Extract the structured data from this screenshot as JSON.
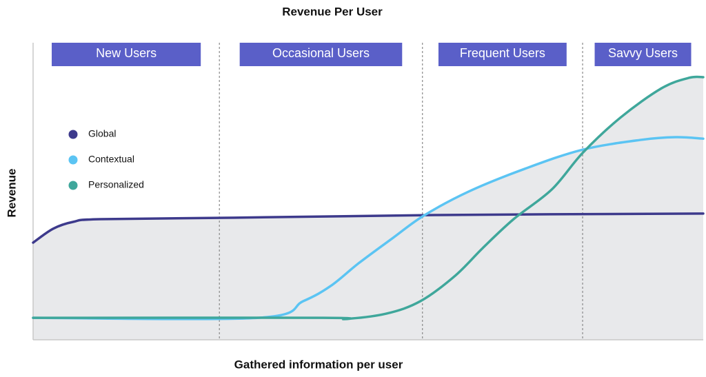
{
  "chart_data": {
    "type": "line",
    "title": "Revenue Per User",
    "xlabel": "Gathered information per user",
    "ylabel": "Revenue",
    "xlim": [
      0,
      100
    ],
    "ylim": [
      0,
      100
    ],
    "regions": [
      {
        "label": "New Users",
        "start": 0,
        "end": 27.8
      },
      {
        "label": "Occasional Users",
        "start": 27.8,
        "end": 58.1
      },
      {
        "label": "Frequent Users",
        "start": 58.1,
        "end": 82
      },
      {
        "label": "Savvy Users",
        "start": 82,
        "end": 100
      }
    ],
    "region_color": "#5a5fc8",
    "area_color": "#e8e9eb",
    "series": [
      {
        "name": "Global",
        "color": "#3d3a8c",
        "x": [
          0,
          3,
          6,
          10,
          30,
          60,
          100
        ],
        "values": [
          32.7,
          37.4,
          39.7,
          40.6,
          41.1,
          42,
          42.5
        ]
      },
      {
        "name": "Contextual",
        "color": "#5bc4f3",
        "x": [
          0,
          33.6,
          40.3,
          44.4,
          48.6,
          53.7,
          58.3,
          65,
          73.3,
          82,
          90.7,
          95.9,
          100
        ],
        "values": [
          7.4,
          7.4,
          13,
          18.1,
          25.8,
          34.3,
          41.8,
          49.9,
          57.5,
          64,
          67.3,
          68.2,
          67.7
        ]
      },
      {
        "name": "Personalized",
        "color": "#3fa79b",
        "x": [
          0,
          43.4,
          46.5,
          52.7,
          57.8,
          63,
          67.1,
          71.7,
          77.4,
          82,
          87.7,
          93.8,
          97.9,
          100
        ],
        "values": [
          7.4,
          7.4,
          7,
          8.8,
          13,
          21.6,
          30.9,
          40.6,
          50.6,
          62.9,
          74.9,
          84.7,
          88.2,
          88.4
        ]
      }
    ]
  }
}
